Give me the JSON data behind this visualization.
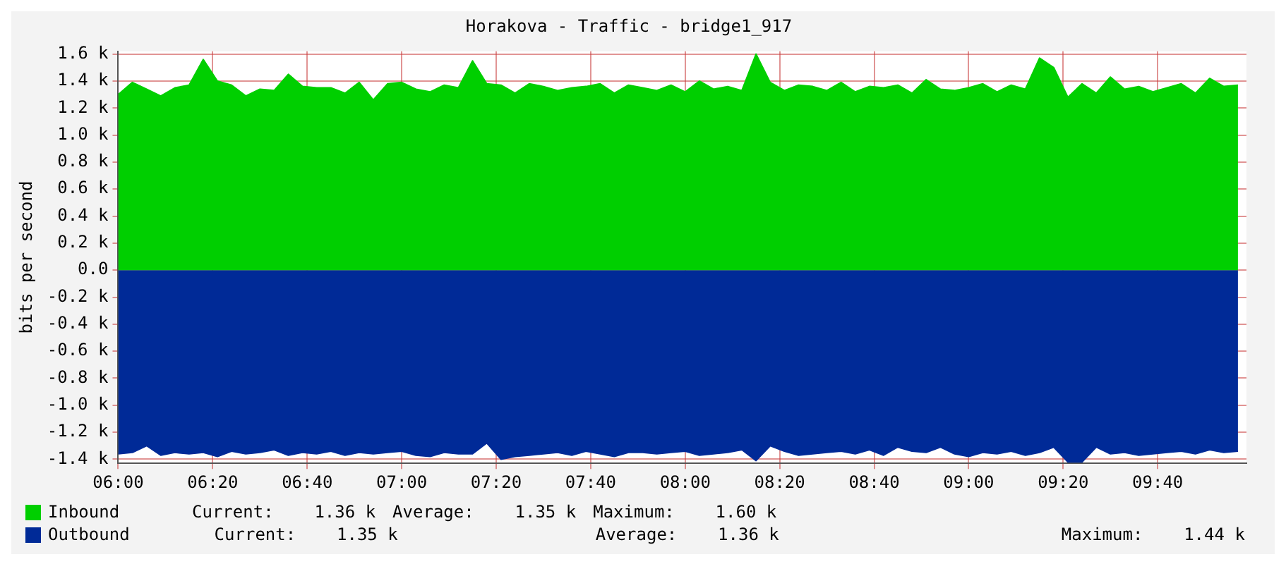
{
  "chart_data": {
    "type": "area",
    "title": "Horakova - Traffic - bridge1_917",
    "ylabel": "bits per second",
    "x": [
      6,
      6.05,
      6.1,
      6.15,
      6.2,
      6.25,
      6.3,
      6.35,
      6.4,
      6.45,
      6.5,
      6.55,
      6.6,
      6.65,
      6.7,
      6.75,
      6.8,
      6.85,
      6.9,
      6.95,
      7,
      7.05,
      7.1,
      7.15,
      7.2,
      7.25,
      7.3,
      7.35,
      7.4,
      7.45,
      7.5,
      7.55,
      7.6,
      7.65,
      7.7,
      7.75,
      7.8,
      7.85,
      7.9,
      7.95,
      8,
      8.05,
      8.1,
      8.15,
      8.2,
      8.25,
      8.3,
      8.35,
      8.4,
      8.45,
      8.5,
      8.55,
      8.6,
      8.65,
      8.7,
      8.75,
      8.8,
      8.85,
      8.9,
      8.95,
      9,
      9.05,
      9.1,
      9.15,
      9.2,
      9.25,
      9.3,
      9.35,
      9.4,
      9.45,
      9.5,
      9.55,
      9.6,
      9.65,
      9.7,
      9.75,
      9.8,
      9.85,
      9.9,
      9.95
    ],
    "series": [
      {
        "name": "Inbound",
        "color": "#00cf00",
        "values": [
          1300,
          1390,
          1340,
          1290,
          1350,
          1370,
          1560,
          1400,
          1370,
          1290,
          1340,
          1330,
          1450,
          1360,
          1350,
          1350,
          1310,
          1390,
          1260,
          1380,
          1390,
          1340,
          1320,
          1370,
          1350,
          1550,
          1380,
          1370,
          1310,
          1380,
          1360,
          1330,
          1350,
          1360,
          1380,
          1310,
          1370,
          1350,
          1330,
          1370,
          1320,
          1400,
          1340,
          1360,
          1330,
          1600,
          1390,
          1330,
          1370,
          1360,
          1330,
          1390,
          1320,
          1360,
          1350,
          1370,
          1310,
          1410,
          1340,
          1330,
          1350,
          1380,
          1320,
          1370,
          1340,
          1570,
          1500,
          1280,
          1380,
          1310,
          1430,
          1340,
          1360,
          1320,
          1350,
          1380,
          1310,
          1420,
          1360,
          1370
        ]
      },
      {
        "name": "Outbound",
        "color": "#002a97",
        "values": [
          -1360,
          -1350,
          -1300,
          -1370,
          -1350,
          -1360,
          -1350,
          -1380,
          -1340,
          -1360,
          -1350,
          -1330,
          -1370,
          -1350,
          -1360,
          -1340,
          -1370,
          -1350,
          -1360,
          -1350,
          -1340,
          -1370,
          -1380,
          -1350,
          -1360,
          -1360,
          -1280,
          -1400,
          -1380,
          -1370,
          -1360,
          -1350,
          -1370,
          -1340,
          -1360,
          -1380,
          -1350,
          -1350,
          -1360,
          -1350,
          -1340,
          -1370,
          -1360,
          -1350,
          -1330,
          -1410,
          -1300,
          -1340,
          -1370,
          -1360,
          -1350,
          -1340,
          -1360,
          -1330,
          -1370,
          -1310,
          -1340,
          -1350,
          -1310,
          -1360,
          -1380,
          -1350,
          -1360,
          -1340,
          -1370,
          -1350,
          -1310,
          -1420,
          -1420,
          -1310,
          -1360,
          -1350,
          -1370,
          -1360,
          -1350,
          -1340,
          -1360,
          -1330,
          -1350,
          -1340
        ]
      }
    ],
    "xlim": [
      6,
      9.98
    ],
    "xticks": [
      {
        "value": 6,
        "label": "06:00"
      },
      {
        "value": 6.3333,
        "label": "06:20"
      },
      {
        "value": 6.6667,
        "label": "06:40"
      },
      {
        "value": 7,
        "label": "07:00"
      },
      {
        "value": 7.3333,
        "label": "07:20"
      },
      {
        "value": 7.6667,
        "label": "07:40"
      },
      {
        "value": 8,
        "label": "08:00"
      },
      {
        "value": 8.3333,
        "label": "08:20"
      },
      {
        "value": 8.6667,
        "label": "08:40"
      },
      {
        "value": 9,
        "label": "09:00"
      },
      {
        "value": 9.3333,
        "label": "09:20"
      },
      {
        "value": 9.6667,
        "label": "09:40"
      }
    ],
    "ylim": [
      -1430,
      1620
    ],
    "yticks": [
      {
        "value": -1400,
        "label": "-1.4 k"
      },
      {
        "value": -1200,
        "label": "-1.2 k"
      },
      {
        "value": -1000,
        "label": "-1.0 k"
      },
      {
        "value": -800,
        "label": "-0.8 k"
      },
      {
        "value": -600,
        "label": "-0.6 k"
      },
      {
        "value": -400,
        "label": "-0.4 k"
      },
      {
        "value": -200,
        "label": "-0.2 k"
      },
      {
        "value": 0,
        "label": "0.0"
      },
      {
        "value": 200,
        "label": "0.2 k"
      },
      {
        "value": 400,
        "label": "0.4 k"
      },
      {
        "value": 600,
        "label": "0.6 k"
      },
      {
        "value": 800,
        "label": "0.8 k"
      },
      {
        "value": 1000,
        "label": "1.0 k"
      },
      {
        "value": 1200,
        "label": "1.2 k"
      },
      {
        "value": 1400,
        "label": "1.4 k"
      },
      {
        "value": 1600,
        "label": "1.6 k"
      }
    ],
    "grid": true,
    "legend": "bottom",
    "annotations": [
      "Current:    1.36 k",
      "Average:    1.35 k",
      "Maximum:    1.60 k",
      "Current:    1.35 k",
      "Average:    1.36 k",
      "Maximum:    1.44 k"
    ]
  }
}
